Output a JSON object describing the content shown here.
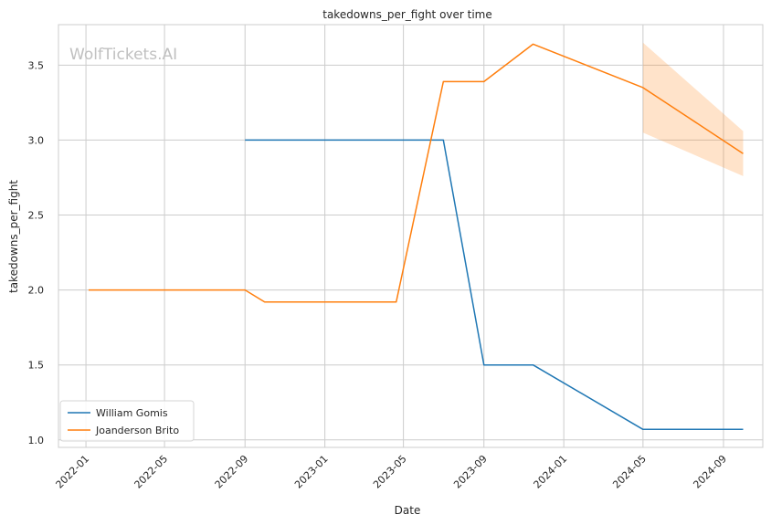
{
  "watermark": "WolfTickets.AI",
  "chart_data": {
    "type": "line",
    "title": "takedowns_per_fight over time",
    "xlabel": "Date",
    "ylabel": "takedowns_per_fight",
    "xlim": [
      "2021-11-20",
      "2024-10-31"
    ],
    "ylim": [
      0.95,
      3.77
    ],
    "x_ticks": [
      "2022-01",
      "2022-05",
      "2022-09",
      "2023-01",
      "2023-05",
      "2023-09",
      "2024-01",
      "2024-05",
      "2024-09"
    ],
    "y_ticks": [
      1.0,
      1.5,
      2.0,
      2.5,
      3.0,
      3.5
    ],
    "grid": true,
    "legend": "lower-left",
    "series": [
      {
        "name": "William Gomis",
        "color": "#1f77b4",
        "points": [
          {
            "x": "2022-09-01",
            "y": 3.0
          },
          {
            "x": "2023-07-01",
            "y": 3.0
          },
          {
            "x": "2023-09-01",
            "y": 1.5
          },
          {
            "x": "2023-11-15",
            "y": 1.5
          },
          {
            "x": "2024-05-01",
            "y": 1.07
          },
          {
            "x": "2024-10-01",
            "y": 1.07
          }
        ]
      },
      {
        "name": "Joanderson Brito",
        "color": "#ff7f0e",
        "points": [
          {
            "x": "2022-01-05",
            "y": 2.0
          },
          {
            "x": "2022-09-01",
            "y": 2.0
          },
          {
            "x": "2022-10-01",
            "y": 1.92
          },
          {
            "x": "2023-04-20",
            "y": 1.92
          },
          {
            "x": "2023-07-01",
            "y": 3.39
          },
          {
            "x": "2023-09-01",
            "y": 3.39
          },
          {
            "x": "2023-11-15",
            "y": 3.64
          },
          {
            "x": "2024-05-01",
            "y": 3.35
          },
          {
            "x": "2024-10-01",
            "y": 2.91
          }
        ],
        "confidence_band": [
          {
            "x": "2024-05-01",
            "low": 3.05,
            "high": 3.65
          },
          {
            "x": "2024-10-01",
            "low": 2.76,
            "high": 3.06
          }
        ]
      }
    ]
  }
}
